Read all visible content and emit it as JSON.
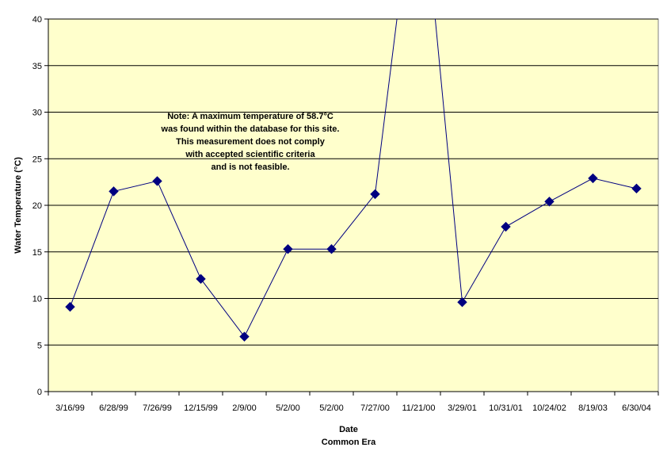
{
  "colors": {
    "plot_background": "#FFFFCC",
    "gridline": "#000000",
    "series": "#000080",
    "marker": "#000080"
  },
  "chart_data": {
    "type": "line",
    "title": "",
    "xlabel": "Date",
    "xlabel_sub": "Common Era",
    "ylabel": "Water Temperature (°C)",
    "ylim": [
      0,
      40
    ],
    "yticks": [
      0,
      5,
      10,
      15,
      20,
      25,
      30,
      35,
      40
    ],
    "categories": [
      "3/16/99",
      "6/28/99",
      "7/26/99",
      "12/15/99",
      "2/9/00",
      "5/2/00",
      "5/2/00",
      "7/27/00",
      "11/21/00",
      "3/29/01",
      "10/31/01",
      "10/24/02",
      "8/19/03",
      "6/30/04"
    ],
    "grid": true,
    "legend": "none",
    "marker": "diamond",
    "series": [
      {
        "values": [
          9.1,
          21.5,
          22.6,
          12.1,
          5.9,
          15.3,
          15.3,
          21.2,
          58.7,
          9.6,
          17.7,
          20.4,
          22.9,
          21.8
        ]
      }
    ],
    "annotation": [
      "Note:  A maximum temperature of 58.7°C",
      "was found within the database for this site.",
      "This measurement does not comply",
      "with accepted scientific criteria",
      "and is not feasible."
    ]
  }
}
